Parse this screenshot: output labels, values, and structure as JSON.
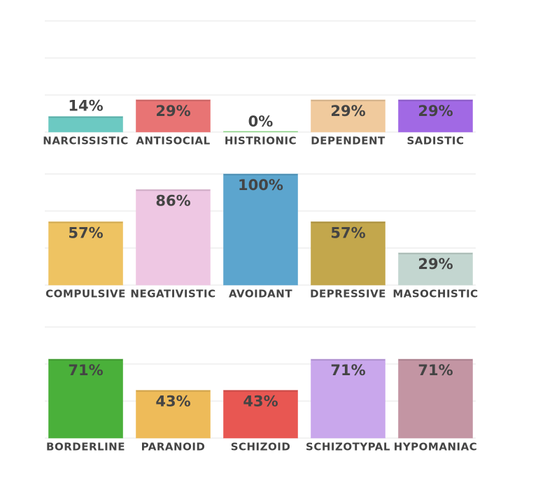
{
  "chart_data": [
    {
      "type": "bar",
      "categories": [
        "NARCISSISTIC",
        "ANTISOCIAL",
        "HISTRIONIC",
        "DEPENDENT",
        "SADISTIC"
      ],
      "values": [
        14,
        29,
        0,
        29,
        29
      ],
      "value_labels": [
        "14%",
        "29%",
        "0%",
        "29%",
        "29%"
      ],
      "colors": [
        "#6fcfc8",
        "#ef7878",
        "#8fd88a",
        "#f7d0a2",
        "#a66ceb"
      ],
      "ylim": [
        0,
        100
      ],
      "yticks": [
        0,
        33.3,
        66.7,
        100
      ],
      "grid": true
    },
    {
      "type": "bar",
      "categories": [
        "COMPULSIVE",
        "NEGATIVISTIC",
        "AVOIDANT",
        "DEPRESSIVE",
        "MASOCHISTIC"
      ],
      "values": [
        57,
        86,
        100,
        57,
        29
      ],
      "value_labels": [
        "57%",
        "86%",
        "100%",
        "57%",
        "29%"
      ],
      "colors": [
        "#f5c965",
        "#f5cdea",
        "#5faad4",
        "#c9ac4e",
        "#c9ddd6"
      ],
      "ylim": [
        0,
        100
      ],
      "yticks": [
        0,
        33.3,
        66.7,
        100
      ],
      "grid": true
    },
    {
      "type": "bar",
      "categories": [
        "BORDERLINE",
        "PARANOID",
        "SCHIZOID",
        "SCHIZOTYPAL",
        "HYPOMANIAC"
      ],
      "values": [
        71,
        43,
        43,
        71,
        71
      ],
      "value_labels": [
        "71%",
        "43%",
        "43%",
        "71%",
        "71%"
      ],
      "colors": [
        "#4cb53c",
        "#f5c15c",
        "#ef5a55",
        "#cfacf3",
        "#c99aa8"
      ],
      "ylim": [
        0,
        100
      ],
      "yticks": [
        0,
        33.3,
        66.7,
        100
      ],
      "grid": true
    }
  ]
}
